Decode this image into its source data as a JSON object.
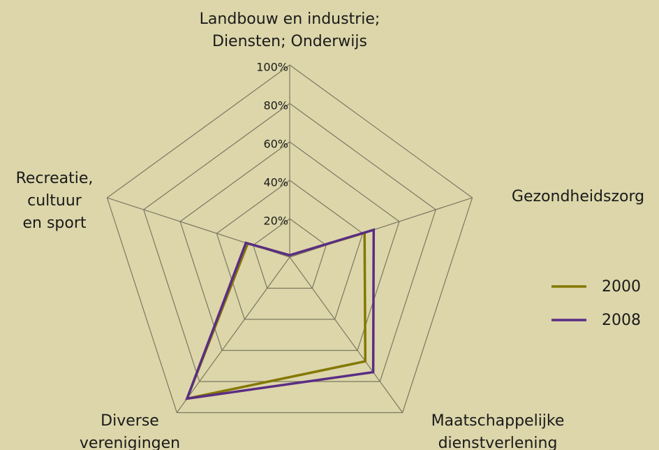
{
  "chart_data": {
    "type": "radar",
    "categories": [
      [
        "Landbouw en industrie;",
        "Diensten; Onderwijs"
      ],
      [
        "Gezondheidszorg"
      ],
      [
        "Maatschappelijke",
        "dienstverlening"
      ],
      [
        "Diverse",
        "verenigingen"
      ],
      [
        "Recreatie,",
        "cultuur",
        "en sport"
      ]
    ],
    "series": [
      {
        "name": "2000",
        "color": "#847800",
        "values": [
          1,
          41,
          67,
          91,
          23
        ]
      },
      {
        "name": "2008",
        "color": "#5a2d84",
        "values": [
          1,
          46,
          74,
          91,
          24
        ]
      }
    ],
    "ylim": [
      0,
      100
    ],
    "yticks": [
      {
        "value": 20,
        "label": "20%"
      },
      {
        "value": 40,
        "label": "40%"
      },
      {
        "value": 60,
        "label": "60%"
      },
      {
        "value": 80,
        "label": "80%"
      },
      {
        "value": 100,
        "label": "100%"
      }
    ],
    "grid": true
  }
}
